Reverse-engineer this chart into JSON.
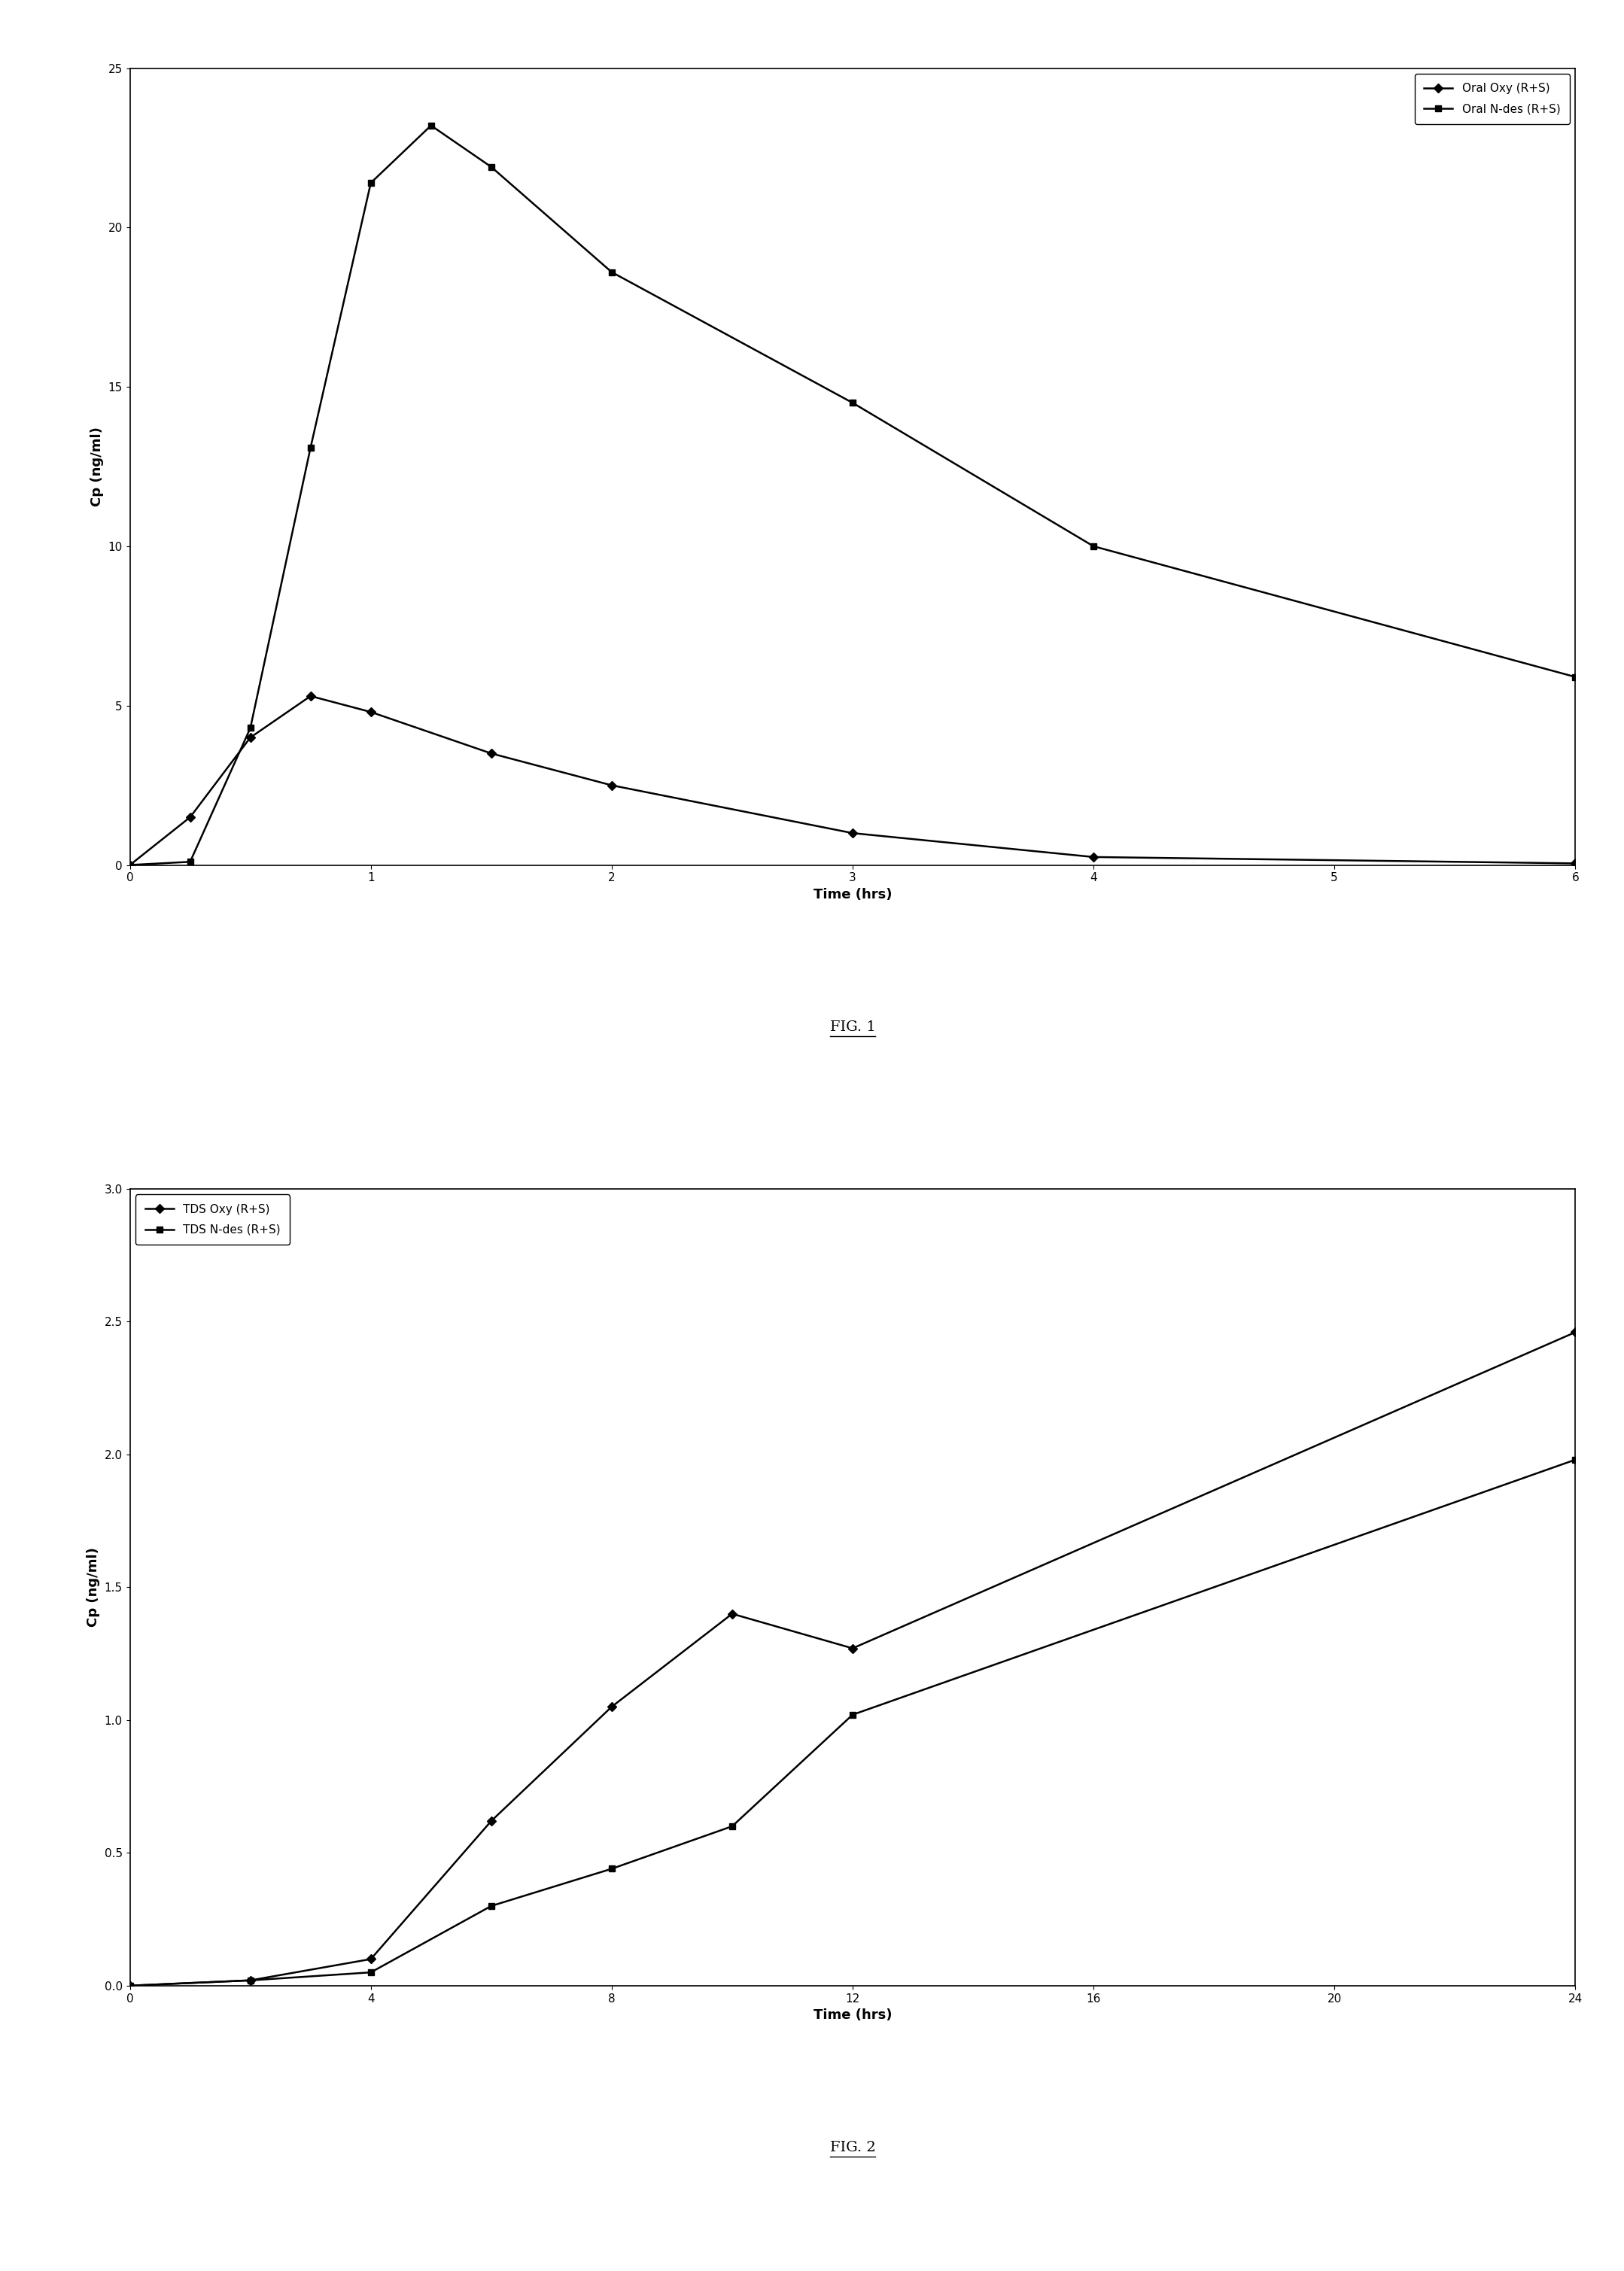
{
  "fig1": {
    "xlabel": "Time (hrs)",
    "ylabel": "Cp (ng/ml)",
    "xlim": [
      0,
      6
    ],
    "ylim": [
      0,
      25
    ],
    "xticks": [
      0,
      1,
      2,
      3,
      4,
      5,
      6
    ],
    "yticks": [
      0,
      5,
      10,
      15,
      20,
      25
    ],
    "series1": {
      "label": "Oral Oxy (R+S)",
      "x": [
        0,
        0.25,
        0.5,
        0.75,
        1.0,
        1.5,
        2.0,
        3.0,
        4.0,
        6.0
      ],
      "y": [
        0,
        1.5,
        4.0,
        5.3,
        4.8,
        3.5,
        2.5,
        1.0,
        0.25,
        0.05
      ],
      "marker": "D",
      "markersize": 6
    },
    "series2": {
      "label": "Oral N-des (R+S)",
      "x": [
        0,
        0.25,
        0.5,
        0.75,
        1.0,
        1.25,
        1.5,
        2.0,
        3.0,
        4.0,
        6.0
      ],
      "y": [
        0,
        0.1,
        4.3,
        13.1,
        21.4,
        23.2,
        21.9,
        18.6,
        14.5,
        10.0,
        5.9
      ],
      "marker": "s",
      "markersize": 6
    },
    "legend_loc": "upper right"
  },
  "fig2": {
    "xlabel": "Time (hrs)",
    "ylabel": "Cp (ng/ml)",
    "xlim": [
      0,
      24
    ],
    "ylim": [
      0,
      3.0
    ],
    "xticks": [
      0,
      4,
      8,
      12,
      16,
      20,
      24
    ],
    "yticks": [
      0.0,
      0.5,
      1.0,
      1.5,
      2.0,
      2.5,
      3.0
    ],
    "series1": {
      "label": "TDS Oxy (R+S)",
      "x": [
        0,
        2,
        4,
        6,
        8,
        10,
        12,
        24
      ],
      "y": [
        0,
        0.02,
        0.1,
        0.62,
        1.05,
        1.4,
        1.27,
        2.46
      ],
      "marker": "D",
      "markersize": 6
    },
    "series2": {
      "label": "TDS N-des (R+S)",
      "x": [
        0,
        2,
        4,
        6,
        8,
        10,
        12,
        24
      ],
      "y": [
        0,
        0.02,
        0.05,
        0.3,
        0.44,
        0.6,
        1.02,
        1.98
      ],
      "marker": "s",
      "markersize": 6
    },
    "legend_loc": "upper left"
  },
  "line_color": "#000000",
  "linewidth": 1.8,
  "background_color": "#ffffff",
  "axis_label_fontsize": 13,
  "tick_fontsize": 11,
  "legend_fontsize": 11,
  "fig_label_fontsize": 14
}
